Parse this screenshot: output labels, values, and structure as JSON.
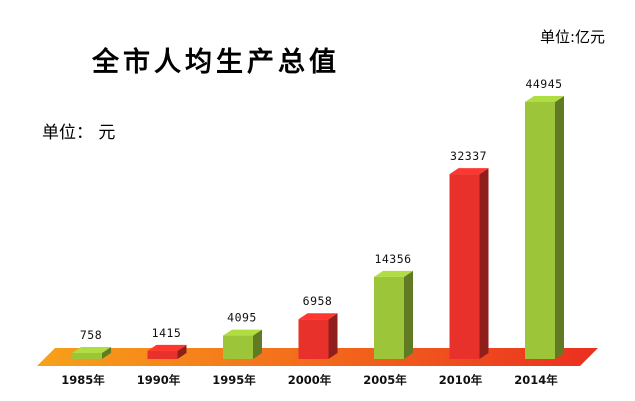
{
  "chart_data": {
    "type": "bar",
    "title": "全市人均生产总值",
    "unit_top": "单位:亿元",
    "unit_left": "单位： 元",
    "categories": [
      "1985年",
      "1990年",
      "1995年",
      "2000年",
      "2005年",
      "2010年",
      "2014年"
    ],
    "values": [
      758,
      1415,
      4095,
      6958,
      14356,
      32337,
      44945
    ],
    "bar_colors": [
      "#9dc53a",
      "#e8312b",
      "#9dc53a",
      "#e8312b",
      "#9dc53a",
      "#e8312b",
      "#9dc53a"
    ],
    "floor_color": "#f5601e",
    "grid": false
  }
}
